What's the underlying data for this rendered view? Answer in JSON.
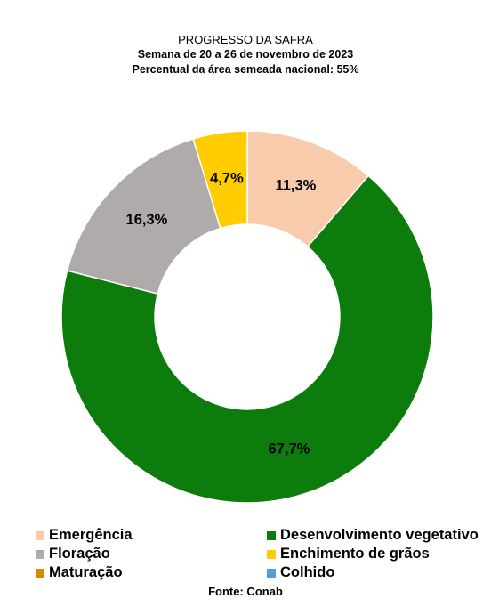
{
  "chart_data": {
    "type": "pie",
    "title": "PROGRESSO DA SAFRA",
    "subtitle_1": "Semana de 20 a 26 de novembro de 2023",
    "subtitle_2": "Percentual da área semeada nacional: 55%",
    "source": "Fonte: Conab",
    "donut": true,
    "legend_placement": "bottom",
    "slices": [
      {
        "label": "Emergência",
        "value": 11.3,
        "display": "11,3%",
        "color": "#F8CBAD"
      },
      {
        "label": "Desenvolvimento vegetativo",
        "value": 67.7,
        "display": "67,7%",
        "color": "#0C7C0C"
      },
      {
        "label": "Floração",
        "value": 16.3,
        "display": "16,3%",
        "color": "#AFABAB"
      },
      {
        "label": "Enchimento de grãos",
        "value": 4.7,
        "display": "4,7%",
        "color": "#FFCC00"
      },
      {
        "label": "Maturação",
        "value": 0,
        "display": "",
        "color": "#D98A00"
      },
      {
        "label": "Colhido",
        "value": 0,
        "display": "",
        "color": "#5B9BD5"
      }
    ]
  }
}
